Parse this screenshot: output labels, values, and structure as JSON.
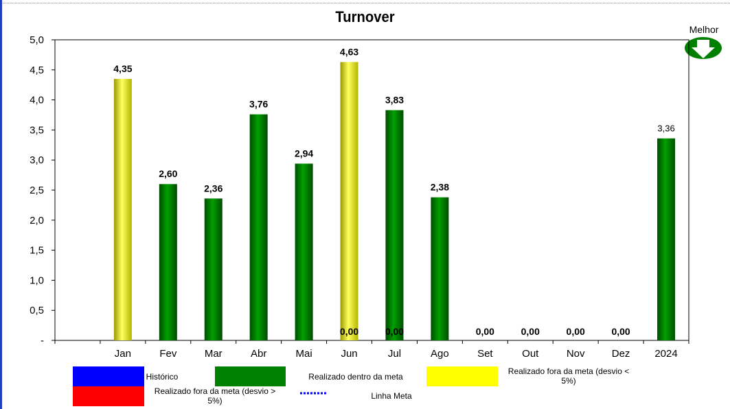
{
  "chart_data": {
    "type": "bar",
    "title": "Turnover",
    "categories": [
      "Jan",
      "Fev",
      "Mar",
      "Abr",
      "Mai",
      "Jun",
      "Jul",
      "Ago",
      "Set",
      "Out",
      "Nov",
      "Dez",
      "2024"
    ],
    "values": [
      4.35,
      2.6,
      2.36,
      3.76,
      2.94,
      4.63,
      3.83,
      2.38,
      0.0,
      0.0,
      0.0,
      0.0,
      3.36
    ],
    "value_labels": [
      "4,35",
      "2,60",
      "2,36",
      "3,76",
      "2,94",
      "4,63",
      "3,83",
      "2,38",
      "0,00",
      "0,00",
      "0,00",
      "0,00",
      "3,36"
    ],
    "bar_colors": [
      "#ffff00",
      "#008000",
      "#008000",
      "#008000",
      "#008000",
      "#ffff00",
      "#008000",
      "#008000",
      "#008000",
      "#008000",
      "#008000",
      "#008000",
      "#008000"
    ],
    "extra_zero_labels": [
      {
        "category": "Jun",
        "label": "0,00"
      },
      {
        "category": "Jul",
        "label": "0,00"
      }
    ],
    "ylim": [
      0,
      5
    ],
    "yticks": [
      "-",
      "0,5",
      "1,0",
      "1,5",
      "2,0",
      "2,5",
      "3,0",
      "3,5",
      "4,0",
      "4,5",
      "5,0"
    ],
    "ytick_values": [
      0,
      0.5,
      1.0,
      1.5,
      2.0,
      2.5,
      3.0,
      3.5,
      4.0,
      4.5,
      5.0
    ],
    "grid": false,
    "legend_position": "bottom",
    "better_direction": "Melhor"
  },
  "legend": {
    "items": [
      {
        "label": "Histórico",
        "color": "#0000ff"
      },
      {
        "label": "Realizado dentro da meta",
        "color": "#008000"
      },
      {
        "label": "Realizado fora da meta (desvio < 5%)",
        "color": "#ffff00"
      },
      {
        "label": "Realizado fora da meta (desvio > 5%)",
        "color": "#ff0000"
      },
      {
        "label": "Linha Meta",
        "color": "#0000ff"
      }
    ]
  }
}
